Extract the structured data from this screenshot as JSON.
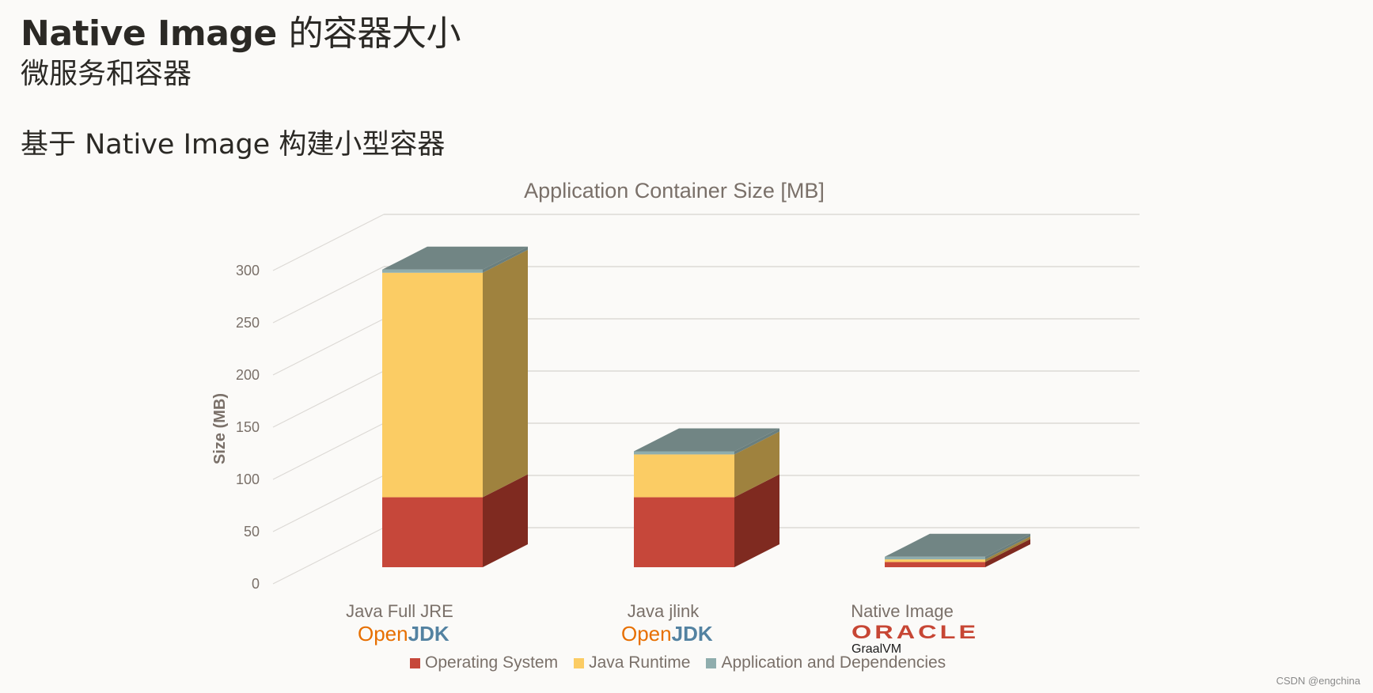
{
  "slide": {
    "title_latin": "Native Image",
    "title_cjk": "的容器大小",
    "subtitle": "微服务和容器",
    "heading": "基于 Native Image 构建小型容器",
    "watermark": "CSDN @engchina"
  },
  "colors": {
    "os": "#c6473a",
    "os_side": "#7f2a20",
    "runtime": "#fbcc64",
    "runtime_side": "#9f823e",
    "app": "#8fadad",
    "top": "#718584",
    "grid": "#dcd9d5",
    "text": "#7a7069"
  },
  "categories_display": [
    {
      "label": "Java Full JRE",
      "logo_a": "Open",
      "logo_b": "JDK"
    },
    {
      "label": "Java jlink",
      "logo_a": "Open",
      "logo_b": "JDK"
    },
    {
      "label": "Native Image",
      "logo_a": "ORACLE",
      "logo_b": "GraalVM"
    }
  ],
  "legend": [
    {
      "label": "Operating System",
      "color": "#c6473a"
    },
    {
      "label": "Java Runtime",
      "color": "#fbcc64"
    },
    {
      "label": "Application and Dependencies",
      "color": "#8fadad"
    }
  ],
  "chart_data": {
    "type": "bar",
    "stacked": true,
    "3d": true,
    "title": "Application Container Size [MB]",
    "xlabel": "",
    "ylabel": "Size (MB)",
    "ylim": [
      0,
      300
    ],
    "yticks": [
      0,
      50,
      100,
      150,
      200,
      250,
      300
    ],
    "grid": true,
    "legend_position": "bottom",
    "categories": [
      "Java Full JRE",
      "Java jlink",
      "Native Image"
    ],
    "series": [
      {
        "name": "Operating System",
        "values": [
          67,
          67,
          5
        ]
      },
      {
        "name": "Java Runtime",
        "values": [
          215,
          41,
          2.5
        ]
      },
      {
        "name": "Application and Dependencies",
        "values": [
          3,
          3,
          2.5
        ]
      }
    ]
  }
}
